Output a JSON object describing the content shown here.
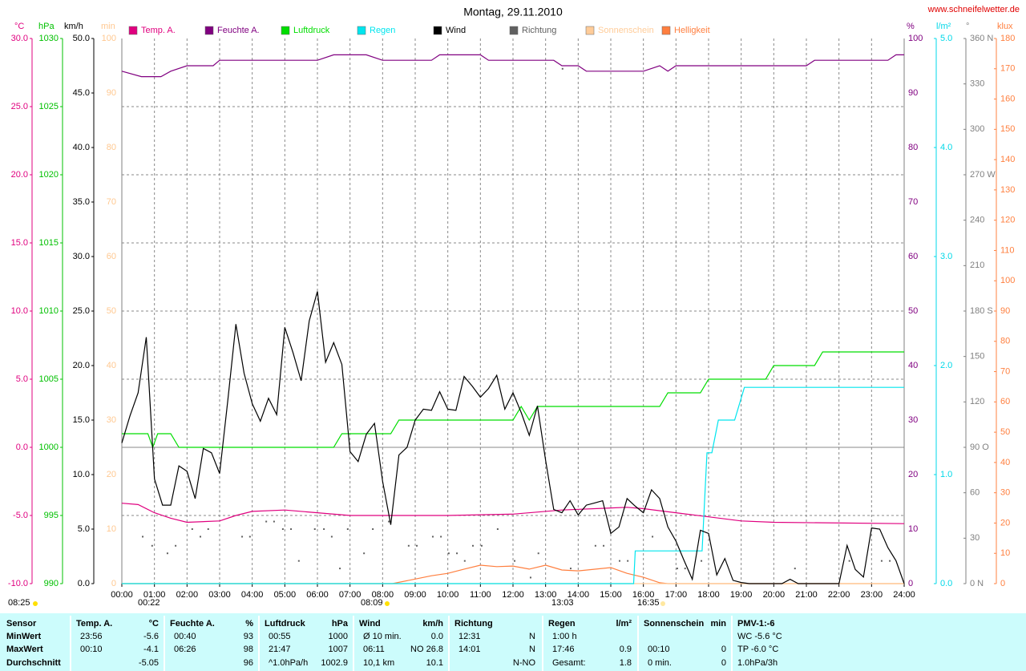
{
  "chart_data": {
    "type": "line",
    "title": "Montag, 29.11.2010",
    "source": "www.schneifelwetter.de",
    "xlim": [
      0,
      24
    ],
    "xticks": [
      {
        "value": 0,
        "label": "00:00"
      },
      {
        "value": 1,
        "label": "01:00"
      },
      {
        "value": 2,
        "label": "02:00"
      },
      {
        "value": 3,
        "label": "03:00"
      },
      {
        "value": 4,
        "label": "04:00"
      },
      {
        "value": 5,
        "label": "05:00"
      },
      {
        "value": 6,
        "label": "06:00"
      },
      {
        "value": 7,
        "label": "07:00"
      },
      {
        "value": 8,
        "label": "08:00"
      },
      {
        "value": 9,
        "label": "09:00"
      },
      {
        "value": 10,
        "label": "10:00"
      },
      {
        "value": 11,
        "label": "11:00"
      },
      {
        "value": 12,
        "label": "12:00"
      },
      {
        "value": 13,
        "label": "13:00"
      },
      {
        "value": 14,
        "label": "14:00"
      },
      {
        "value": 15,
        "label": "15:00"
      },
      {
        "value": 16,
        "label": "16:00"
      },
      {
        "value": 17,
        "label": "17:00"
      },
      {
        "value": 18,
        "label": "18:00"
      },
      {
        "value": 19,
        "label": "19:00"
      },
      {
        "value": 20,
        "label": "20:00"
      },
      {
        "value": 21,
        "label": "21:00"
      },
      {
        "value": 22,
        "label": "22:00"
      },
      {
        "value": 23,
        "label": "23:00"
      },
      {
        "value": 24,
        "label": "24:00"
      }
    ],
    "grid": true,
    "axes": {
      "temp": {
        "label": "°C",
        "color": "#e0007f",
        "lim": [
          -10,
          30
        ],
        "ticks": [
          {
            "value": -10,
            "label": "-10.0"
          },
          {
            "value": -5,
            "label": "-5.0"
          },
          {
            "value": 0,
            "label": "0.0"
          },
          {
            "value": 5,
            "label": "5.0"
          },
          {
            "value": 10,
            "label": "10.0"
          },
          {
            "value": 15,
            "label": "15.0"
          },
          {
            "value": 20,
            "label": "20.0"
          },
          {
            "value": 25,
            "label": "25.0"
          },
          {
            "value": 30,
            "label": "30.0"
          }
        ]
      },
      "press": {
        "label": "hPa",
        "color": "#00c000",
        "lim": [
          990,
          1030
        ],
        "ticks": [
          990,
          995,
          1000,
          1005,
          1010,
          1015,
          1020,
          1025,
          1030
        ]
      },
      "wind": {
        "label": "km/h",
        "color": "#000000",
        "lim": [
          0,
          50
        ],
        "ticks": [
          {
            "value": 0,
            "label": "0.0"
          },
          {
            "value": 5,
            "label": "5.0"
          },
          {
            "value": 10,
            "label": "10.0"
          },
          {
            "value": 15,
            "label": "15.0"
          },
          {
            "value": 20,
            "label": "20.0"
          },
          {
            "value": 25,
            "label": "25.0"
          },
          {
            "value": 30,
            "label": "30.0"
          },
          {
            "value": 35,
            "label": "35.0"
          },
          {
            "value": 40,
            "label": "40.0"
          },
          {
            "value": 45,
            "label": "45.0"
          },
          {
            "value": 50,
            "label": "50.0"
          }
        ]
      },
      "sun": {
        "label": "min",
        "color": "#ffc890",
        "lim": [
          0,
          100
        ],
        "ticks": [
          0,
          10,
          20,
          30,
          40,
          50,
          60,
          70,
          80,
          90,
          100
        ]
      },
      "hum": {
        "label": "%",
        "color": "#800080",
        "lim": [
          0,
          100
        ],
        "ticks": [
          0,
          10,
          20,
          30,
          40,
          50,
          60,
          70,
          80,
          90,
          100
        ]
      },
      "rain": {
        "label": "l/m²",
        "color": "#00d8e8",
        "lim": [
          0,
          5
        ],
        "ticks": [
          {
            "value": 0,
            "label": "0.0"
          },
          {
            "value": 1,
            "label": "1.0"
          },
          {
            "value": 2,
            "label": "2.0"
          },
          {
            "value": 3,
            "label": "3.0"
          },
          {
            "value": 4,
            "label": "4.0"
          },
          {
            "value": 5,
            "label": "5.0"
          }
        ]
      },
      "dir": {
        "label": "°",
        "color": "#808080",
        "lim": [
          0,
          360
        ],
        "ticks": [
          {
            "value": 0,
            "label": "0 N"
          },
          30,
          60,
          {
            "value": 90,
            "label": "90 O"
          },
          120,
          150,
          {
            "value": 180,
            "label": "180 S"
          },
          210,
          240,
          {
            "value": 270,
            "label": "270 W"
          },
          300,
          330,
          {
            "value": 360,
            "label": "360 N"
          }
        ]
      },
      "lux": {
        "label": "klux",
        "color": "#ff8040",
        "lim": [
          0,
          180
        ],
        "ticks": [
          0,
          10,
          20,
          30,
          40,
          50,
          60,
          70,
          80,
          90,
          100,
          110,
          120,
          130,
          140,
          150,
          160,
          170,
          180
        ]
      }
    },
    "series": [
      {
        "name": "Temp. A.",
        "color": "#e0007f",
        "axis": "temp",
        "x": [
          0,
          0.5,
          1,
          1.5,
          2,
          3,
          3.5,
          4,
          5,
          6,
          7,
          10,
          12,
          13.5,
          15.5,
          16,
          17,
          18,
          19,
          20,
          24
        ],
        "values": [
          -4.1,
          -4.2,
          -4.8,
          -5.2,
          -5.5,
          -5.4,
          -5.0,
          -4.7,
          -4.6,
          -4.8,
          -5.0,
          -5.0,
          -4.9,
          -4.6,
          -4.4,
          -4.5,
          -4.8,
          -5.1,
          -5.4,
          -5.5,
          -5.6
        ]
      },
      {
        "name": "Feuchte A.",
        "color": "#800080",
        "axis": "hum",
        "x": [
          0,
          0.6,
          1.2,
          1.5,
          2,
          2.8,
          3,
          6,
          6.5,
          7.5,
          8,
          8.5,
          9.5,
          9.75,
          11,
          11.25,
          13.25,
          13.5,
          14,
          14.25,
          16,
          16.5,
          16.75,
          17,
          21,
          21.25,
          23.5,
          23.75,
          24
        ],
        "values": [
          94,
          93,
          93,
          94,
          95,
          95,
          96,
          96,
          97,
          97,
          96,
          96,
          96,
          97,
          97,
          96,
          96,
          95,
          95,
          94,
          94,
          95,
          94,
          95,
          95,
          96,
          96,
          97,
          97
        ]
      },
      {
        "name": "Luftdruck",
        "color": "#00dd00",
        "axis": "press",
        "x": [
          0,
          0.8,
          0.95,
          1.1,
          1.5,
          1.75,
          6.5,
          6.75,
          8.25,
          8.5,
          12,
          12.25,
          12.5,
          12.75,
          16.5,
          16.75,
          17.75,
          18,
          19.75,
          20,
          21.25,
          21.5,
          24
        ],
        "values": [
          1001,
          1001,
          1000,
          1001,
          1001,
          1000,
          1000,
          1001,
          1001,
          1002,
          1002,
          1003,
          1002,
          1003,
          1003,
          1004,
          1004,
          1005,
          1005,
          1006,
          1006,
          1007,
          1007
        ]
      },
      {
        "name": "Regen",
        "color": "#00e5ee",
        "axis": "rain",
        "x": [
          0,
          15.7,
          15.75,
          17.8,
          17.95,
          18.1,
          18.3,
          18.8,
          19.1,
          24
        ],
        "values": [
          0,
          0,
          0.3,
          0.3,
          1.2,
          1.2,
          1.5,
          1.5,
          1.8,
          1.8
        ]
      },
      {
        "name": "Wind",
        "color": "#000000",
        "axis": "wind",
        "x": [
          0,
          0.25,
          0.5,
          0.75,
          1,
          1.25,
          1.5,
          1.75,
          2,
          2.25,
          2.5,
          2.75,
          3,
          3.25,
          3.5,
          3.75,
          4,
          4.25,
          4.5,
          4.75,
          5,
          5.25,
          5.5,
          5.75,
          6,
          6.25,
          6.5,
          6.75,
          7,
          7.25,
          7.5,
          7.75,
          8,
          8.25,
          8.5,
          8.75,
          9,
          9.25,
          9.5,
          9.75,
          10,
          10.25,
          10.5,
          10.75,
          11,
          11.25,
          11.5,
          11.75,
          12,
          12.25,
          12.5,
          12.75,
          13,
          13.25,
          13.5,
          13.75,
          14,
          14.25,
          14.5,
          14.75,
          15,
          15.25,
          15.5,
          15.75,
          16,
          16.25,
          16.5,
          16.75,
          17,
          17.25,
          17.5,
          17.75,
          18,
          18.25,
          18.5,
          18.75,
          19,
          19.25,
          19.5,
          19.75,
          20,
          20.25,
          20.5,
          20.75,
          21,
          21.25,
          21.5,
          21.75,
          22,
          22.25,
          22.5,
          22.75,
          23,
          23.25,
          23.5,
          23.75,
          24
        ],
        "values": [
          12.9,
          15.4,
          17.5,
          22.6,
          9.6,
          7.2,
          7.2,
          10.8,
          10.3,
          7.8,
          12.4,
          12.0,
          10.1,
          16.8,
          23.8,
          19.3,
          16.5,
          14.9,
          17.0,
          15.5,
          23.5,
          21.2,
          18.6,
          24.1,
          26.8,
          20.3,
          22.1,
          20.1,
          12.1,
          11.2,
          13.7,
          14.7,
          9.4,
          5.4,
          11.8,
          12.5,
          15.0,
          16.0,
          15.9,
          17.6,
          16.0,
          15.9,
          19.0,
          18.1,
          17.1,
          17.9,
          19.1,
          16.0,
          17.5,
          15.7,
          13.6,
          16.3,
          11.3,
          6.8,
          6.5,
          7.6,
          6.3,
          7.2,
          7.4,
          7.6,
          4.6,
          5.2,
          7.8,
          7.1,
          6.5,
          8.6,
          7.8,
          5.2,
          3.9,
          2.1,
          0.4,
          4.9,
          4.6,
          0.8,
          2.3,
          0.3,
          0.1,
          0,
          0,
          0,
          0,
          0,
          0.4,
          0,
          0,
          0,
          0,
          0,
          0,
          3.5,
          1.3,
          0.6,
          5.1,
          5.0,
          3.3,
          2.1,
          0
        ]
      },
      {
        "name": "Richtung",
        "color": "#606060",
        "axis": "dir",
        "marker": "dot",
        "x": [
          0.64,
          0.93,
          1.4,
          1.65,
          2.16,
          2.41,
          2.65,
          3.69,
          3.93,
          4.43,
          4.67,
          4.94,
          5.19,
          5.43,
          5.92,
          6.2,
          6.44,
          6.69,
          6.93,
          7.43,
          7.7,
          8.19,
          8.8,
          9.05,
          9.54,
          9.79,
          10.03,
          10.28,
          10.52,
          10.77,
          11.04,
          11.53,
          12.05,
          12.54,
          12.78,
          13.52,
          13.77,
          14.53,
          14.78,
          15.27,
          15.52,
          16.28,
          17.04,
          17.28,
          17.78,
          20.65,
          22.32,
          23.31,
          23.56
        ],
        "values": [
          31,
          25,
          20,
          25,
          36,
          31,
          36,
          31,
          31,
          41,
          41,
          36,
          36,
          15,
          36,
          36,
          31,
          10,
          36,
          20,
          36,
          41,
          25,
          25,
          31,
          31,
          20,
          20,
          15,
          25,
          25,
          36,
          15,
          4,
          20,
          340,
          10,
          25,
          25,
          15,
          15,
          31,
          10,
          10,
          15,
          10,
          15,
          15,
          15
        ]
      },
      {
        "name": "Sonnenschein",
        "color": "#ffcc99",
        "axis": "sun",
        "x": [
          0,
          24
        ],
        "values": [
          0,
          0
        ]
      },
      {
        "name": "Helligkeit",
        "color": "#ff7f3f",
        "axis": "lux",
        "x": [
          0,
          8.3,
          9,
          9.5,
          10,
          10.5,
          11,
          11.5,
          12,
          12.5,
          13,
          13.5,
          14,
          15,
          15.5,
          16,
          16.5,
          16.75,
          24
        ],
        "values": [
          0,
          0,
          1.5,
          2.6,
          3.4,
          4.8,
          6.1,
          5.6,
          5.8,
          4.8,
          6.1,
          4.5,
          4.2,
          5.3,
          3.4,
          2.1,
          0.3,
          0,
          0
        ]
      }
    ],
    "annotations": [
      "08:25",
      "00:22",
      "08:09",
      "13:03",
      "16:35"
    ]
  },
  "table": {
    "columns": [
      {
        "header": "Sensor",
        "rows": [
          "MinWert",
          "MaxWert",
          "Durchschnitt"
        ]
      },
      {
        "header": "Temp. A.",
        "unit": "°C",
        "rows": [
          [
            "23:56",
            "-5.6"
          ],
          [
            "00:10",
            "-4.1"
          ],
          [
            null,
            "-5.05"
          ]
        ]
      },
      {
        "header": "Feuchte A.",
        "unit": "%",
        "rows": [
          [
            "00:40",
            "93"
          ],
          [
            "06:26",
            "98"
          ],
          [
            null,
            "96"
          ]
        ]
      },
      {
        "header": "Luftdruck",
        "unit": "hPa",
        "rows": [
          [
            "00:55",
            "1000"
          ],
          [
            "21:47",
            "1007"
          ],
          [
            "^1.0hPa/h",
            "1002.9"
          ]
        ]
      },
      {
        "header": "Wind",
        "unit": "km/h",
        "rows": [
          [
            "Ø 10 min.",
            "0.0"
          ],
          [
            "06:11",
            "NO 26.8"
          ],
          [
            "10,1 km",
            "10.1"
          ]
        ]
      },
      {
        "header": "Richtung",
        "rows": [
          [
            "12:31",
            "N"
          ],
          [
            "14:01",
            "N"
          ],
          [
            null,
            "N-NO"
          ]
        ]
      },
      {
        "header": "Regen",
        "unit": "l/m²",
        "rows": [
          [
            "1:00 h",
            null
          ],
          [
            "17:46",
            "0.9"
          ],
          [
            "Gesamt:",
            "1.8"
          ]
        ]
      },
      {
        "header": "Sonnenschein",
        "unit": "min",
        "rows": [
          [
            null,
            null
          ],
          [
            "00:10",
            "0"
          ],
          [
            "0 min.",
            "0"
          ]
        ]
      },
      {
        "header": "PMV-1:-6",
        "rows": [
          "WC -5.6 °C",
          "TP -6.0 °C",
          "1.0hPa/3h"
        ]
      }
    ]
  }
}
